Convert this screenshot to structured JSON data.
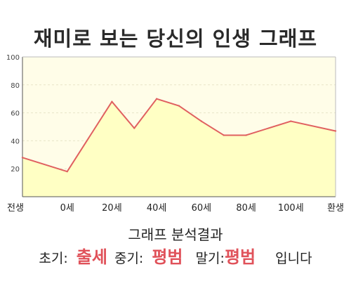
{
  "title": "재미로 보는 당신의 인생 그래프",
  "chart_data": {
    "type": "area",
    "title": "재미로 보는 당신의 인생 그래프",
    "x": [
      -10,
      0,
      10,
      15,
      20,
      25,
      30,
      35,
      40,
      50,
      60
    ],
    "values": [
      28,
      18,
      68,
      49,
      70,
      65,
      54,
      44,
      44,
      54,
      47
    ],
    "x_ticks": [
      {
        "x": -10,
        "label": "전생"
      },
      {
        "x": 0,
        "label": "0세"
      },
      {
        "x": 10,
        "label": "20세"
      },
      {
        "x": 20,
        "label": "40세"
      },
      {
        "x": 30,
        "label": "60세"
      },
      {
        "x": 40,
        "label": "80세"
      },
      {
        "x": 50,
        "label": "100세"
      },
      {
        "x": 60,
        "label": "환생"
      }
    ],
    "y_ticks": [
      20,
      40,
      60,
      80,
      100
    ],
    "xlim": [
      -10,
      60
    ],
    "ylim": [
      0,
      100
    ],
    "grid": true,
    "colors": {
      "line": "#e06060",
      "fill": "#ffffc4",
      "plot_bg": "#fffde8"
    }
  },
  "result": {
    "title": "그래프 분석결과",
    "early_label": "초기:",
    "early_value": "출세",
    "mid_label": "중기:",
    "mid_value": "평범",
    "late_label": "말기:",
    "late_value": "평범",
    "suffix": "입니다"
  }
}
